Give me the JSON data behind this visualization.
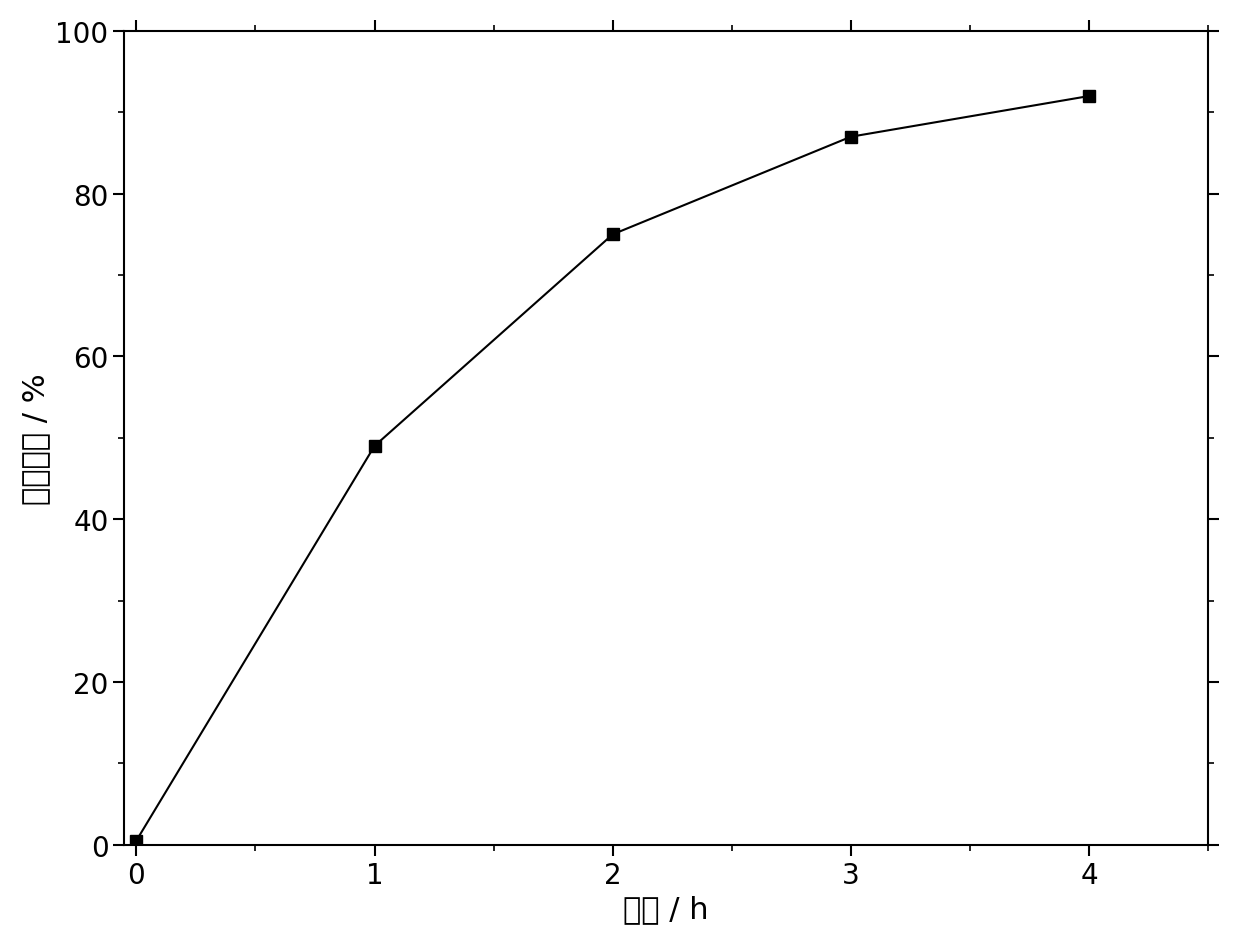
{
  "x": [
    0,
    1,
    2,
    3,
    4
  ],
  "y": [
    0.5,
    49.0,
    75.0,
    87.0,
    92.0
  ],
  "xlabel": "时间 / h",
  "ylabel": "砥溢出率 / %",
  "xlim": [
    -0.05,
    4.5
  ],
  "ylim": [
    0,
    100
  ],
  "xticks": [
    0,
    1,
    2,
    3,
    4
  ],
  "yticks": [
    0,
    20,
    40,
    60,
    80,
    100
  ],
  "line_color": "#000000",
  "marker": "s",
  "marker_color": "#000000",
  "marker_size": 9,
  "line_width": 1.5,
  "background_color": "#ffffff",
  "xlabel_fontsize": 22,
  "ylabel_fontsize": 22,
  "tick_fontsize": 20
}
